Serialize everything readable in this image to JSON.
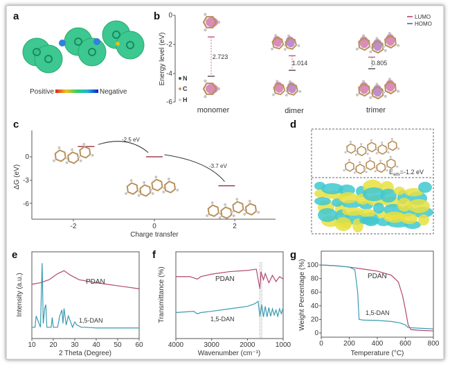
{
  "panels": {
    "a": "a",
    "b": "b",
    "c": "c",
    "d": "d",
    "e": "e",
    "f": "f",
    "g": "g"
  },
  "panel_a": {
    "scale_left": "Positive",
    "scale_right": "Negative"
  },
  "panel_b": {
    "ylabel": "Energy level (eV)",
    "yticks": [
      "0",
      "-2",
      "-4",
      "-6"
    ],
    "legend": [
      "LUMO",
      "HOMO"
    ],
    "legend_colors": [
      "#c8648c",
      "#7a7ac8"
    ],
    "atoms": [
      "N",
      "C",
      "H"
    ],
    "atom_colors": [
      "#3a5a3a",
      "#c89650",
      "#cccccc"
    ],
    "molecules": [
      "monomer",
      "dimer",
      "trimer"
    ],
    "gaps": [
      "2.723",
      "1.014",
      "0.805"
    ]
  },
  "panel_c": {
    "ylabel": "ΔG (eV)",
    "xlabel": "Charge transfer",
    "yticks": [
      "0",
      "-3",
      "-6"
    ],
    "xticks": [
      "-2",
      "0",
      "2"
    ],
    "steps": [
      "-2.5 eV",
      "-3.7 eV"
    ]
  },
  "panel_d": {
    "label": "E",
    "label_sub": "ads",
    "label_value": "=-1.2 eV"
  },
  "chart_data": [
    {
      "type": "bar",
      "title": "",
      "ylabel": "Energy level (eV)",
      "ylim": [
        -6,
        0
      ],
      "categories": [
        "monomer",
        "dimer",
        "trimer"
      ],
      "series": [
        {
          "name": "LUMO",
          "values": [
            -1.5,
            -2.8,
            -2.9
          ]
        },
        {
          "name": "HOMO",
          "values": [
            -4.22,
            -3.81,
            -3.7
          ]
        }
      ],
      "annotations": [
        "2.723",
        "1.014",
        "0.805"
      ]
    },
    {
      "type": "line",
      "ylabel": "ΔG (eV)",
      "xlabel": "Charge transfer",
      "xlim": [
        -3,
        3
      ],
      "ylim": [
        -8,
        2
      ],
      "levels": [
        {
          "x": -1.7,
          "y": 1.3
        },
        {
          "x": 0,
          "y": 0
        },
        {
          "x": 1.8,
          "y": -3.7
        }
      ],
      "annotations": [
        "-2.5 eV",
        "-3.7 eV"
      ]
    },
    {
      "type": "line",
      "xlabel": "2 Theta (Degree)",
      "ylabel": "Intensity (a.u.)",
      "xlim": [
        10,
        60
      ],
      "xticks": [
        "10",
        "20",
        "30",
        "40",
        "50",
        "60"
      ],
      "series": [
        {
          "name": "PDAN",
          "color": "#b04870",
          "x": [
            10,
            14,
            18,
            22,
            25,
            28,
            32,
            36,
            40,
            45,
            50,
            55,
            60
          ],
          "y": [
            0.62,
            0.64,
            0.68,
            0.76,
            0.8,
            0.74,
            0.68,
            0.66,
            0.64,
            0.62,
            0.6,
            0.58,
            0.56
          ]
        },
        {
          "name": "1,5-DAN",
          "color": "#3a9ab0",
          "x": [
            10,
            11.5,
            12,
            14,
            14.8,
            15.3,
            16,
            16.5,
            17,
            19,
            19.5,
            20,
            22,
            23,
            24,
            24.5,
            25,
            26,
            27,
            29,
            30,
            31,
            33,
            35,
            40,
            50,
            60
          ],
          "y": [
            0.05,
            0.05,
            0.2,
            0.05,
            0.9,
            0.1,
            0.3,
            0.35,
            0.05,
            0.05,
            0.18,
            0.05,
            0.05,
            0.2,
            0.28,
            0.1,
            0.3,
            0.08,
            0.2,
            0.05,
            0.12,
            0.08,
            0.05,
            0.05,
            0.04,
            0.04,
            0.04
          ]
        }
      ]
    },
    {
      "type": "line",
      "xlabel": "Wavenumber (cm⁻¹)",
      "ylabel": "Transmittance (%)",
      "xlim": [
        4000,
        1000
      ],
      "xticks": [
        "4000",
        "3000",
        "2000",
        "1000"
      ],
      "series": [
        {
          "name": "PDAN",
          "color": "#b04870",
          "x": [
            4000,
            3600,
            3400,
            3300,
            3000,
            2500,
            2000,
            1750,
            1650,
            1620,
            1550,
            1500,
            1400,
            1300,
            1200,
            1100,
            1000
          ],
          "y": [
            0.7,
            0.7,
            0.66,
            0.7,
            0.74,
            0.78,
            0.8,
            0.82,
            0.5,
            0.78,
            0.65,
            0.75,
            0.6,
            0.72,
            0.62,
            0.7,
            0.66
          ]
        },
        {
          "name": "1,5-DAN",
          "color": "#3a9ab0",
          "x": [
            4000,
            3500,
            3400,
            3300,
            3000,
            2500,
            2000,
            1800,
            1700,
            1650,
            1600,
            1550,
            1500,
            1450,
            1400,
            1350,
            1300,
            1250,
            1200,
            1150,
            1100,
            1050,
            1000
          ],
          "y": [
            0.12,
            0.14,
            0.1,
            0.12,
            0.14,
            0.18,
            0.22,
            0.26,
            0.3,
            0.05,
            0.25,
            0.05,
            0.22,
            0.05,
            0.2,
            0.06,
            0.18,
            0.08,
            0.16,
            0.06,
            0.18,
            0.1,
            0.2
          ]
        }
      ]
    },
    {
      "type": "line",
      "xlabel": "Temperature (°C)",
      "ylabel": "Weight Percentage (%)",
      "xlim": [
        0,
        800
      ],
      "ylim": [
        -5,
        105
      ],
      "xticks": [
        "0",
        "200",
        "400",
        "600",
        "800"
      ],
      "yticks": [
        "0",
        "20",
        "40",
        "60",
        "80",
        "100"
      ],
      "series": [
        {
          "name": "PDAN",
          "color": "#b04870",
          "x": [
            0,
            100,
            200,
            300,
            400,
            500,
            550,
            580,
            600,
            620,
            640,
            700,
            800
          ],
          "y": [
            100,
            99,
            97,
            94,
            91,
            85,
            75,
            55,
            35,
            12,
            5,
            4,
            3
          ]
        },
        {
          "name": "1,5-DAN",
          "color": "#3a9ab0",
          "x": [
            0,
            100,
            200,
            240,
            260,
            270,
            300,
            400,
            500,
            560,
            600,
            620,
            700,
            800
          ],
          "y": [
            100,
            99,
            97,
            93,
            60,
            20,
            19,
            18.5,
            17,
            15,
            12,
            8,
            7,
            6
          ]
        }
      ]
    }
  ]
}
